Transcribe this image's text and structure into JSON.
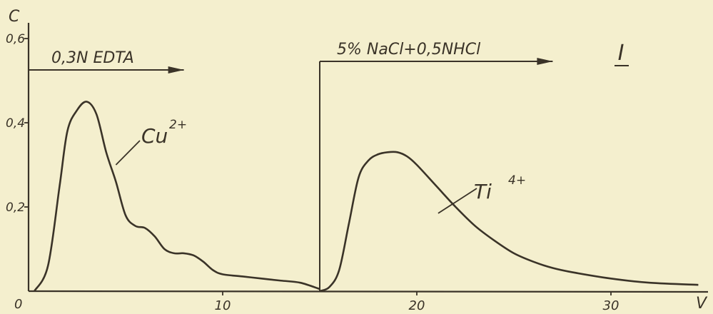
{
  "chart_data": {
    "type": "line",
    "figure_label": "I",
    "ylabel": "C",
    "xlabel": "V",
    "xlim": [
      0,
      35
    ],
    "ylim": [
      0,
      0.6
    ],
    "x_ticks": [
      "10",
      "20",
      "30"
    ],
    "x_zero_label": "0",
    "y_ticks": [
      "0,2",
      "0,4",
      "0,6"
    ],
    "eluents": [
      {
        "label": "0,3N EDTA",
        "x_start": 0,
        "x_end": 8
      },
      {
        "label": "5% NaCl+0,5NHCl",
        "x_start": 15,
        "x_end": 27
      }
    ],
    "switch_x": 15,
    "series": [
      {
        "name": "Cu",
        "name_sup": "2+",
        "x": [
          0.3,
          1.0,
          1.6,
          2.0,
          2.5,
          3.0,
          3.5,
          4.0,
          4.5,
          5.0,
          5.5,
          6.0,
          6.5,
          7.0,
          7.5,
          8.0,
          8.5,
          9.0,
          9.5,
          10.0,
          11.0,
          12.0,
          13.0,
          14.0,
          15.0
        ],
        "y": [
          0.0,
          0.06,
          0.25,
          0.38,
          0.43,
          0.45,
          0.42,
          0.33,
          0.26,
          0.18,
          0.155,
          0.15,
          0.13,
          0.1,
          0.09,
          0.09,
          0.085,
          0.07,
          0.05,
          0.04,
          0.035,
          0.03,
          0.025,
          0.02,
          0.005
        ]
      },
      {
        "name": "Ti",
        "name_sup": "4+",
        "x": [
          15.0,
          15.5,
          16.0,
          16.5,
          17.0,
          17.5,
          18.0,
          18.5,
          19.0,
          19.5,
          20.0,
          21.0,
          22.0,
          23.0,
          24.0,
          25.0,
          26.0,
          27.0,
          28.0,
          30.0,
          32.0,
          34.5
        ],
        "y": [
          0.0,
          0.01,
          0.05,
          0.16,
          0.27,
          0.31,
          0.325,
          0.33,
          0.33,
          0.32,
          0.3,
          0.25,
          0.2,
          0.155,
          0.12,
          0.09,
          0.07,
          0.055,
          0.045,
          0.03,
          0.02,
          0.015
        ]
      }
    ]
  }
}
